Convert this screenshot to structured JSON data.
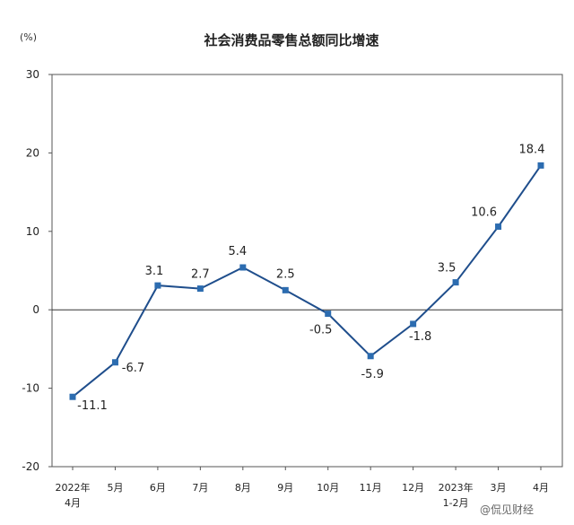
{
  "unit": "(%)",
  "chart_data": {
    "type": "line",
    "title": "社会消费品零售总额同比增速",
    "xlabel": "",
    "ylabel": "",
    "ylim": [
      -20,
      30
    ],
    "yticks": [
      -20,
      -10,
      0,
      10,
      20,
      30
    ],
    "grid": false,
    "categories": [
      [
        "2022年",
        "4月"
      ],
      [
        "5月"
      ],
      [
        "6月"
      ],
      [
        "7月"
      ],
      [
        "8月"
      ],
      [
        "9月"
      ],
      [
        "10月"
      ],
      [
        "11月"
      ],
      [
        "12月"
      ],
      [
        "2023年",
        "1-2月"
      ],
      [
        "3月"
      ],
      [
        "4月"
      ]
    ],
    "values": [
      -11.1,
      -6.7,
      3.1,
      2.7,
      5.4,
      2.5,
      -0.5,
      -5.9,
      -1.8,
      3.5,
      10.6,
      18.4
    ],
    "data_labels": [
      "-11.1",
      "-6.7",
      "3.1",
      "2.7",
      "5.4",
      "2.5",
      "-0.5",
      "-5.9",
      "-1.8",
      "3.5",
      "10.6",
      "18.4"
    ],
    "line_color": "#1f4e8c",
    "marker_color": "#2c6cb0"
  },
  "watermark": "@侃见财经"
}
